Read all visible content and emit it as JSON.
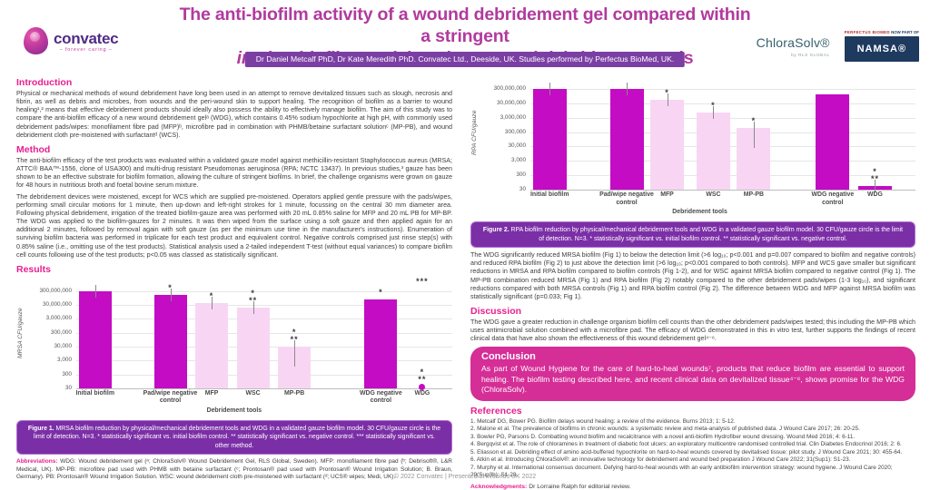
{
  "header": {
    "title_line1": "The anti-biofilm activity of a wound debridement gel compared within a stringent",
    "title_line2_italic": "in vitro",
    "title_line2_rest": " biofilm model against wound debridement tools",
    "authors": "Dr Daniel Metcalf PhD, Dr Kate Meredith PhD. Convatec Ltd., Deeside, UK. Studies performed by Perfectus BioMed, UK.",
    "logos": {
      "convatec": {
        "name": "convatec",
        "tagline": "– forever caring –"
      },
      "chlorasolv": {
        "name": "ChloraSolv®",
        "sub": "by RLS GLOBAL"
      },
      "perfectus": {
        "name": "PERFECTUS BIOMED",
        "now_part_of": "NOW PART OF"
      },
      "namsa": {
        "name": "NAMSA®"
      }
    }
  },
  "sections": {
    "introduction": {
      "heading": "Introduction",
      "body": "Physical or mechanical methods of wound debridement have long been used in an attempt to remove devitalized tissues such as slough, necrosis and fibrin, as well as debris and microbes, from wounds and the peri-wound skin to support healing. The recognition of biofilm as a barrier to wound healing¹,² means that effective debridement products should ideally also possess the ability to effectively manage biofilm. The aim of this study was to compare the anti-biofilm efficacy of a new wound debridement gelᵃ (WDG), which contains 0.45% sodium hypochlorite at high pH, with commonly used debridement pads/wipes: monofilament fibre pad (MFP)ᵇ, microfibre pad in combination with PHMB/betaine surfactant solutionᶜ (MP-PB), and wound debridement cloth pre-moistened with surfactantᵈ (WCS)."
    },
    "method": {
      "heading": "Method",
      "p1": "The anti-biofilm efficacy of the test products was evaluated within a validated gauze model against methicillin-resistant Staphylococcus aureus (MRSA; ATTC® BAA™-1556, clone of USA300) and multi-drug resistant Pseudomonas aeruginosa (RPA; NCTC 13437). In previous studies,³ gauze has been shown to be an effective substrate for biofilm formation, allowing the culture of stringent biofilms. In brief, the challenge organisms were grown on gauze for 48 hours in nutritious broth and foetal bovine serum mixture.",
      "p2": "The debridement devices were moistened, except for WCS which are supplied pre-moistened. Operators applied gentle pressure with the pads/wipes, performing small circular motions for 1 minute, then up-down and left-right strokes for 1 minute, focussing on the central 30 mm diameter area. Following physical debridement, irrigation of the treated biofilm-gauze area was performed with 20 mL 0.85% saline for MFP and 20 mL PB for MP-BP. The WDG was applied to the biofilm-gauzes for 2 minutes. It was then wiped from the surface using a soft gauze and then applied again for an additional 2 minutes, followed by removal again with soft gauze (as per the minimum use time in the manufacturer's instructions). Enumeration of surviving biofilm bacteria was performed in triplicate for each test product and equivalent control. Negative controls comprised just rinse step(s) with 0.85% saline (i.e., omitting use of the test products). Statistical analysis used a 2-tailed independent T-test (without equal variances) to compare biofilm cell counts following use of the test products; p<0.05 was classed as statistically significant."
    },
    "results": {
      "heading": "Results",
      "body_right": "The WDG significantly reduced MRSA biofilm (Fig 1) to below the detection limit (>6 log₁₀; p<0.001 and p=0.007 compared to biofilm and negative controls) and reduced RPA biofilm (Fig 2) to just above the detection limit (>6 log₁₀; p<0.001 compared to both controls). MFP and WCS gave smaller but significant reductions in MRSA and RPA biofilm compared to biofilm controls (Fig 1-2), and for WSC against MRSA biofilm compared to negative control (Fig 1). The MP-PB combination reduced MRSA (Fig 1) and RPA biofilm (Fig 2) notably compared to the other debridement pads/wipes (1-3 log₁₀), and significant reductions compared with both MRSA controls (Fig 1) and RPA biofilm control (Fig 2). The difference between WDG and MFP against MRSA biofilm was statistically significant (p=0.033; Fig 1)."
    },
    "discussion": {
      "heading": "Discussion",
      "body": "The WDG gave a greater reduction in challenge organism biofilm cell counts than the other debridement pads/wipes tested; this including the MP-PB which uses antimicrobial solution combined with a microfibre pad. The efficacy of WDG demonstrated in this in vitro test, further supports the findings of recent clinical data that have also shown the effectiveness of this wound debridement gel⁴⁻⁶."
    },
    "conclusion": {
      "heading": "Conclusion",
      "body": "As part of Wound Hygiene for the care of hard-to-heal wounds⁷, products that reduce biofilm are essential to support healing. The biofilm testing described here, and recent clinical data on devitalized tissue⁴⁻⁶, shows promise for the WDG (ChloraSolv)."
    },
    "references": {
      "heading": "References",
      "items": [
        "1. Metcalf DG, Bower PG. Biofilm delays wound healing: a review of the evidence. Burns 2013; 1: 5-12.",
        "2. Malone et al. The prevalence of biofilms in chronic wounds: a systematic review and meta-analysis of published data. J Wound Care 2017; 26: 20-25.",
        "3. Bowler PG, Parsons D. Combatting wound biofilm and recalcitrance with a novel anti-biofilm Hydrofiber wound dressing. Wound Med 2016; 4: 6-11.",
        "4. Bergqvist et al. The role of chloramines in treatment of diabetic foot ulcers: an exploratory multicentre randomised controlled trial. Clin Diabetes Endocrinol 2016; 2: 6.",
        "5. Eliasson et al. Debriding effect of amino acid-buffered hypochlorite on hard-to-heal wounds covered by devitalised tissue: pilot study. J Wound Care 2021; 30: 455-64.",
        "6. Atkin et al. Introducing ChloraSolv®: an innovative technology for debridement and wound bed preparation J Wound Care 2022; 31(Sup1): S1-23.",
        "7. Murphy et al. International consensus document. Defying hard-to-heal wounds with an early antibiofilm intervention strategy: wound hygiene. J Wound Care 2020; 29(Sup3b): S1-28."
      ]
    },
    "acknowledgments": {
      "label": "Acknowledgments:",
      "text": "Dr Lorraine Ralph for editorial review."
    },
    "abbreviations": {
      "label": "Abbreviations:",
      "text": "WDG: Wound debridement gel (ᵃ; ChloraSolv® Wound Debridement Gel, RLS Global, Sweden). MFP: monofilament fibre pad (ᵇ; Debrisoft®, L&R Medical, UK). MP-PB: microfibre pad used with PHMB with betaine surfactant (ᶜ; Prontosan® pad used with Prontosan® Wound Irrigation Solution; B. Braun, Germany). PB: Prontosan® Wound Irrigation Solution. WSC: wound debridement cloth pre-moistened with surfactant (ᵈ; UCS® wipes; Medi, UK)."
    }
  },
  "figures": {
    "fig1": {
      "label": "Figure 1.",
      "caption": " MRSA biofilm reduction by physical/mechanical debridement tools and WDG in a validated gauze biofilm model. 30 CFU/gauze circle is the limit of detection. N=3. * statistically significant vs. initial biofilm control. ** statistically significant vs. negative control. *** statistically significant vs. other method."
    },
    "fig2": {
      "label": "Figure 2.",
      "caption": " RPA biofilm reduction by physical/mechanical debridement tools and WDG in a validated gauze biofilm model. 30 CFU/gauze circle is the limit of detection. N=3. * statistically significant vs. initial biofilm control. ** statistically significant vs. negative control."
    }
  },
  "footer": "© 2022 Convatec | Presented at Wounds UK 2022",
  "colors": {
    "title_magenta": "#b13a9e",
    "heading_pink": "#e81f8f",
    "author_bar_purple": "#7b3fa4",
    "caption_box_purple": "#7b2fa6",
    "conclusion_box_pink": "#d52e97",
    "bar_dark": "#c30cc4",
    "bar_light": "#f8d6f3",
    "namsa_navy": "#1e3a5f"
  },
  "chart_data": [
    {
      "id": "figure-1",
      "type": "bar",
      "scale": "log",
      "ylabel": "MRSA CFU/gauze",
      "xlabel": "Debridement tools",
      "yticks": [
        "300,000,000",
        "30,000,000",
        "3,000,000",
        "300,000",
        "30,000",
        "3,000",
        "300",
        "30"
      ],
      "ylim_log10": [
        1.477,
        8.477
      ],
      "detection_limit": 30,
      "bars": [
        {
          "label": "Initial biofilm",
          "value": 300000000,
          "shade": "dark",
          "sig": [],
          "err": true
        },
        {
          "label": "Pad/wipe negative control",
          "value": 150000000,
          "shade": "dark",
          "sig": [
            "*"
          ],
          "err": true
        },
        {
          "label": "MFP",
          "value": 40000000,
          "shade": "light",
          "sig": [
            "*"
          ],
          "err": true
        },
        {
          "label": "WSC",
          "value": 20000000,
          "shade": "light",
          "sig": [
            "*",
            "**"
          ],
          "err": true
        },
        {
          "label": "MP-PB",
          "value": 30000,
          "shade": "light",
          "sig": [
            "*",
            "**"
          ],
          "err": "long"
        },
        {
          "label": "WDG negative control",
          "value": 80000000,
          "shade": "dark",
          "sig": [
            "*"
          ],
          "err": false
        },
        {
          "label": "WDG",
          "value": 30,
          "shade": "dark",
          "sig": [
            "*",
            "**"
          ],
          "sig_top": "***",
          "marker": "circle",
          "err": false
        }
      ],
      "slots": [
        0.05,
        0.25,
        0.36,
        0.47,
        0.58,
        0.81,
        0.92
      ],
      "xlabel_frac": 0.42
    },
    {
      "id": "figure-2",
      "type": "bar",
      "scale": "log",
      "ylabel": "RPA CFU/gauze",
      "xlabel": "Debridement tools",
      "yticks": [
        "300,000,000",
        "30,000,000",
        "3,000,000",
        "300,000",
        "30,000",
        "3,000",
        "300",
        "30"
      ],
      "ylim_log10": [
        1.477,
        8.477
      ],
      "detection_limit": 30,
      "bars": [
        {
          "label": "Initial biofilm",
          "value": 300000000,
          "shade": "dark",
          "sig": [],
          "err": true
        },
        {
          "label": "Pad/wipe negative control",
          "value": 290000000,
          "shade": "dark",
          "sig": [],
          "err": true
        },
        {
          "label": "MFP",
          "value": 50000000,
          "shade": "light",
          "sig": [
            "*"
          ],
          "err": true
        },
        {
          "label": "WSC",
          "value": 7000000,
          "shade": "light",
          "sig": [
            "*"
          ],
          "err": true
        },
        {
          "label": "MP-PB",
          "value": 600000,
          "shade": "light",
          "sig": [
            "*"
          ],
          "err": "long"
        },
        {
          "label": "WDG negative control",
          "value": 130000000,
          "shade": "dark",
          "sig": [],
          "err": false
        },
        {
          "label": "WDG",
          "value": 50,
          "shade": "dark",
          "sig": [
            "*",
            "**"
          ],
          "err": true
        }
      ],
      "slots": [
        0.05,
        0.25,
        0.355,
        0.475,
        0.58,
        0.785,
        0.895
      ],
      "xlabel_frac": 0.44
    }
  ]
}
